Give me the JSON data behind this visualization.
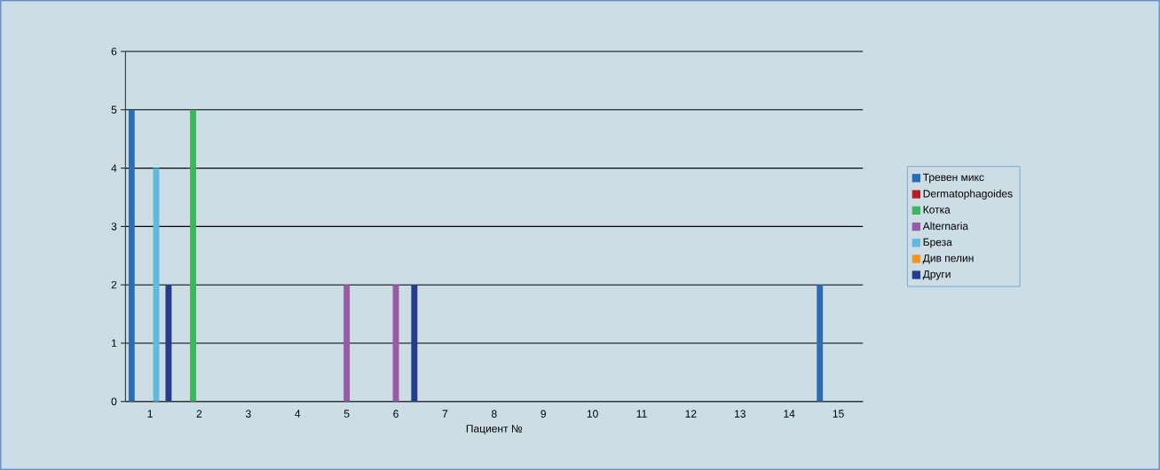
{
  "chart_data": {
    "type": "bar",
    "xlabel": "Пациент №",
    "categories": [
      "1",
      "2",
      "3",
      "4",
      "5",
      "6",
      "7",
      "8",
      "9",
      "10",
      "11",
      "12",
      "13",
      "14",
      "15"
    ],
    "series": [
      {
        "name": "Тревен микс",
        "color": "#2b6cb3",
        "values": [
          5,
          0,
          0,
          0,
          0,
          0,
          0,
          0,
          0,
          0,
          0,
          0,
          0,
          0,
          2
        ]
      },
      {
        "name": "Dermatophagoides",
        "color": "#b71c24",
        "values": [
          0,
          0,
          0,
          0,
          0,
          0,
          0,
          0,
          0,
          0,
          0,
          0,
          0,
          0,
          0
        ]
      },
      {
        "name": "Котка",
        "color": "#3db75e",
        "values": [
          0,
          5,
          0,
          0,
          0,
          0,
          0,
          0,
          0,
          0,
          0,
          0,
          0,
          0,
          0
        ]
      },
      {
        "name": "Alternaria",
        "color": "#9a5ba5",
        "values": [
          0,
          0,
          0,
          0,
          2,
          2,
          0,
          0,
          0,
          0,
          0,
          0,
          0,
          0,
          0
        ]
      },
      {
        "name": "Бреза",
        "color": "#5fb9e0",
        "values": [
          4,
          0,
          0,
          0,
          0,
          0,
          0,
          0,
          0,
          0,
          0,
          0,
          0,
          0,
          0
        ]
      },
      {
        "name": "Див пелин",
        "color": "#f7941e",
        "values": [
          0,
          0,
          0,
          0,
          0,
          0,
          0,
          0,
          0,
          0,
          0,
          0,
          0,
          0,
          0
        ]
      },
      {
        "name": "Други",
        "color": "#243c8e",
        "values": [
          2,
          0,
          0,
          0,
          0,
          2,
          0,
          0,
          0,
          0,
          0,
          0,
          0,
          0,
          0
        ]
      }
    ],
    "ylim": [
      0,
      6
    ],
    "yticks": [
      0,
      1,
      2,
      3,
      4,
      5,
      6
    ],
    "grid": "y",
    "legend": "right"
  }
}
